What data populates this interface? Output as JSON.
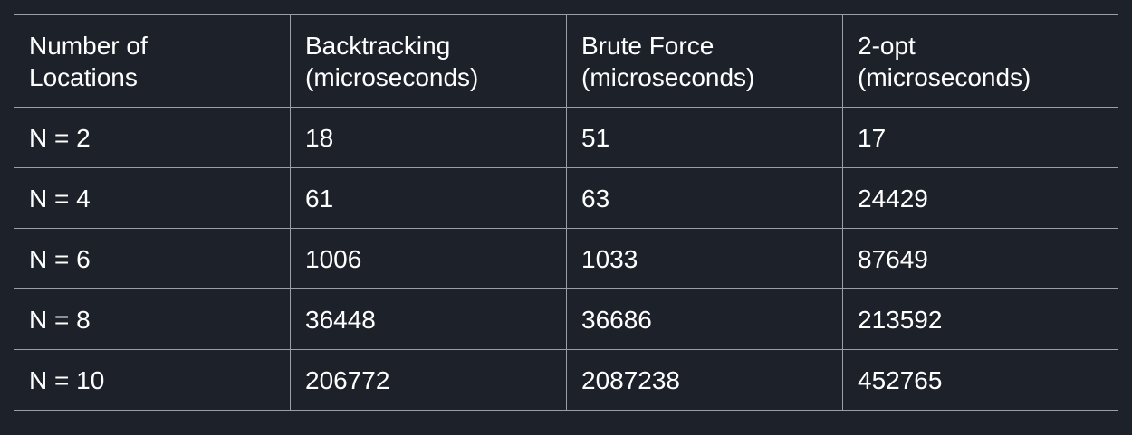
{
  "table": {
    "headers": [
      [
        "Number of",
        "Locations"
      ],
      [
        "Backtracking",
        "(microseconds)"
      ],
      [
        "Brute Force",
        "(microseconds)"
      ],
      [
        "2-opt",
        "(microseconds)"
      ]
    ],
    "rows": [
      [
        "N = 2",
        "18",
        "51",
        "17"
      ],
      [
        "N = 4",
        "61",
        "63",
        "24429"
      ],
      [
        "N = 6",
        "1006",
        "1033",
        "87649"
      ],
      [
        "N = 8",
        "36448",
        "36686",
        "213592"
      ],
      [
        "N = 10",
        "206772",
        "2087238",
        "452765"
      ]
    ]
  }
}
